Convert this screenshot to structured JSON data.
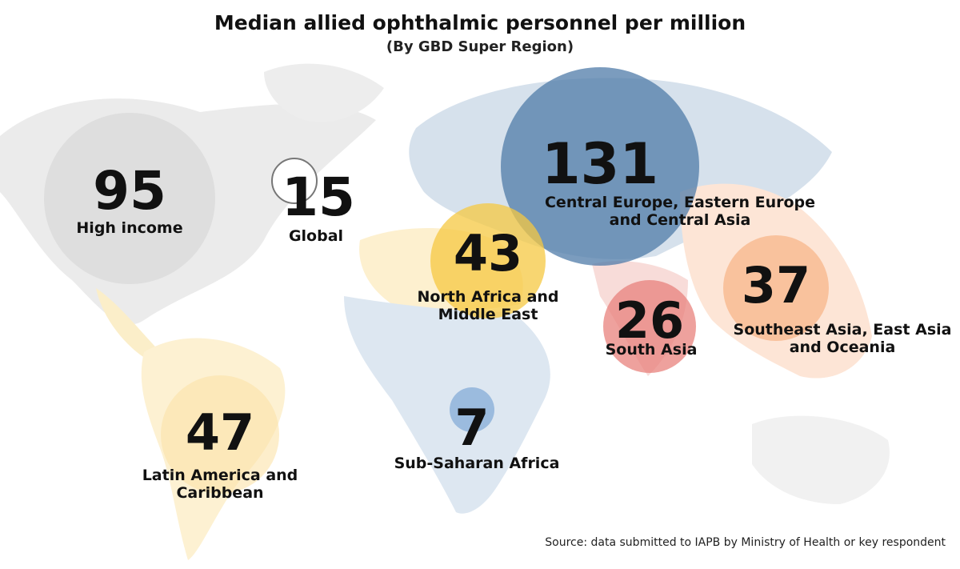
{
  "title": "Median allied ophthalmic personnel per million",
  "subtitle": "(By GBD Super Region)",
  "source": "Source: data submitted to IAPB by Ministry of Health or key respondent",
  "chart_data": {
    "type": "bubble-map",
    "regions": [
      {
        "name": "High income",
        "value": 95,
        "color": "#d9d9d9"
      },
      {
        "name": "Global",
        "value": 15,
        "color": "#ffffff"
      },
      {
        "name": "Central Europe, Eastern Europe\nand Central Asia",
        "value": 131,
        "color": "#4f7ba8"
      },
      {
        "name": "North Africa and\nMiddle East",
        "value": 43,
        "color": "#f5c842"
      },
      {
        "name": "South Asia",
        "value": 26,
        "color": "#e8817c"
      },
      {
        "name": "Southeast Asia, East Asia\nand Oceania",
        "value": 37,
        "color": "#f7b58a"
      },
      {
        "name": "Latin America and\nCaribbean",
        "value": 47,
        "color": "#fbe3a8"
      },
      {
        "name": "Sub-Saharan Africa",
        "value": 7,
        "color": "#8fb3da"
      }
    ]
  }
}
